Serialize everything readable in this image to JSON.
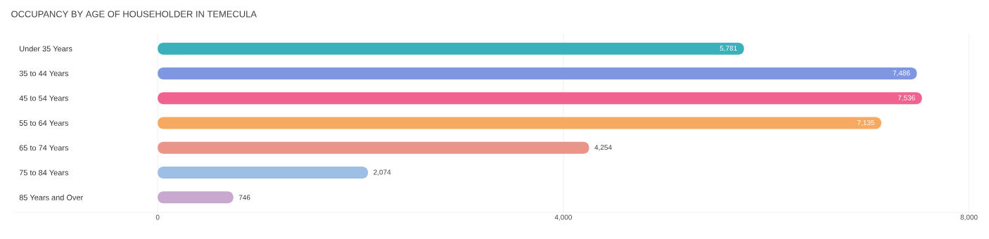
{
  "chart_data": {
    "type": "bar",
    "orientation": "horizontal",
    "title": "OCCUPANCY BY AGE OF HOUSEHOLDER IN TEMECULA",
    "categories": [
      "Under 35 Years",
      "35 to 44 Years",
      "45 to 54 Years",
      "55 to 64 Years",
      "65 to 74 Years",
      "75 to 84 Years",
      "85 Years and Over"
    ],
    "values": [
      5781,
      7486,
      7536,
      7135,
      4254,
      2074,
      746
    ],
    "value_labels": [
      "5,781",
      "7,486",
      "7,536",
      "7,135",
      "4,254",
      "2,074",
      "746"
    ],
    "colors": [
      "#3ab0ba",
      "#7f97e0",
      "#f0628f",
      "#f7a95f",
      "#eb9489",
      "#9dbfe6",
      "#c9a8d0"
    ],
    "xlim": [
      -1430,
      8100
    ],
    "xticks": [
      0,
      {
        "value": 4000,
        "label": "4,000"
      },
      {
        "value": 8000,
        "label": "8,000"
      }
    ],
    "grid": "x"
  }
}
